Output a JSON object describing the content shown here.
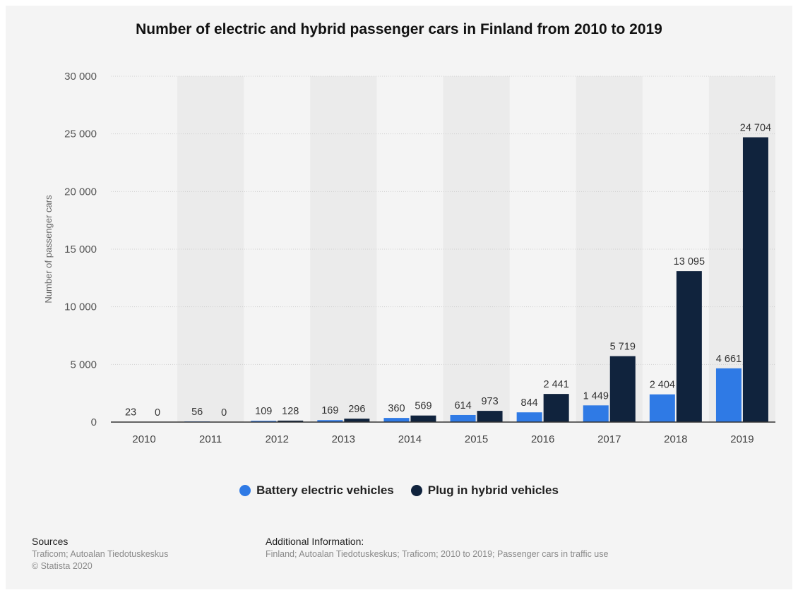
{
  "title": "Number of electric and hybrid passenger cars in Finland from 2010 to 2019",
  "colors": {
    "battery": "#2f7ae5",
    "plugin": "#10233d",
    "grid": "#cfcfcf",
    "band": "#ebebeb"
  },
  "chart_data": {
    "type": "bar",
    "title": "Number of electric and hybrid passenger cars in Finland from 2010 to 2019",
    "xlabel": "",
    "ylabel": "Number of passenger cars",
    "ylim": [
      0,
      30000
    ],
    "yticks": [
      0,
      5000,
      10000,
      15000,
      20000,
      25000,
      30000
    ],
    "ytick_labels": [
      "0",
      "5 000",
      "10 000",
      "15 000",
      "20 000",
      "25 000",
      "30 000"
    ],
    "categories": [
      "2010",
      "2011",
      "2012",
      "2013",
      "2014",
      "2015",
      "2016",
      "2017",
      "2018",
      "2019"
    ],
    "series": [
      {
        "name": "Battery electric vehicles",
        "values": [
          23,
          56,
          109,
          169,
          360,
          614,
          844,
          1449,
          2404,
          4661
        ],
        "labels": [
          "23",
          "56",
          "109",
          "169",
          "360",
          "614",
          "844",
          "1 449",
          "2 404",
          "4 661"
        ]
      },
      {
        "name": "Plug in hybrid vehicles",
        "values": [
          0,
          0,
          128,
          296,
          569,
          973,
          2441,
          5719,
          13095,
          24704
        ],
        "labels": [
          "0",
          "0",
          "128",
          "296",
          "569",
          "973",
          "2 441",
          "5 719",
          "13 095",
          "24 704"
        ]
      }
    ],
    "grid": true,
    "legend_position": "bottom"
  },
  "footer": {
    "sources_heading": "Sources",
    "sources_line1": "Traficom; Autoalan Tiedotuskeskus",
    "sources_line2": "© Statista 2020",
    "additional_heading": "Additional Information:",
    "additional_text": "Finland; Autoalan Tiedotuskeskus; Traficom; 2010 to 2019; Passenger cars in traffic use"
  }
}
